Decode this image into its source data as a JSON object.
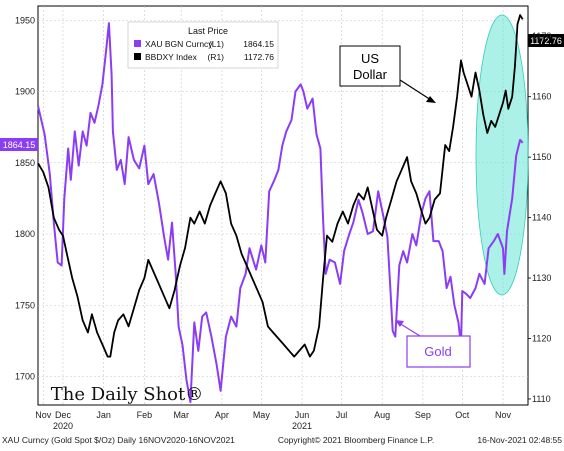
{
  "chart_data": {
    "type": "line",
    "title": "",
    "x_ticks": [
      {
        "label": "Nov",
        "x": "2020-11-16"
      },
      {
        "label": "Dec",
        "x": "2020-12-01"
      },
      {
        "label": "Jan",
        "x": "2021-01-01"
      },
      {
        "label": "Feb",
        "x": "2021-02-01"
      },
      {
        "label": "Mar",
        "x": "2021-03-01"
      },
      {
        "label": "Apr",
        "x": "2021-04-01"
      },
      {
        "label": "May",
        "x": "2021-05-01"
      },
      {
        "label": "Jun",
        "x": "2021-06-01"
      },
      {
        "label": "Jul",
        "x": "2021-07-01"
      },
      {
        "label": "Aug",
        "x": "2021-08-01"
      },
      {
        "label": "Sep",
        "x": "2021-09-01"
      },
      {
        "label": "Oct",
        "x": "2021-10-01"
      },
      {
        "label": "Nov",
        "x": "2021-11-01"
      }
    ],
    "year_labels": [
      {
        "label": "2020",
        "x": "2020-12-01"
      },
      {
        "label": "2021",
        "x": "2021-06-01"
      }
    ],
    "x_range": [
      "2020-11-12",
      "2021-11-20"
    ],
    "y_left": {
      "ylim": [
        1680,
        1960
      ],
      "ticks": [
        1700,
        1750,
        1800,
        1850,
        1900,
        1950
      ]
    },
    "y_right": {
      "ylim": [
        1109,
        1175
      ],
      "ticks": [
        1110,
        1120,
        1130,
        1140,
        1150,
        1160,
        1170
      ]
    },
    "legend": {
      "header": "Last Price",
      "placement": "top-left",
      "entries": [
        {
          "name": "XAU BGN Curncy",
          "axis": "(L1)",
          "value": "1864.15",
          "color": "#8b3df5"
        },
        {
          "name": "BBDXY Index",
          "axis": "(R1)",
          "value": "1172.76",
          "color": "#000000"
        }
      ]
    },
    "series": [
      {
        "name": "XAU BGN Curncy",
        "axis": "left",
        "color": "#8b3df5",
        "points": [
          [
            "2020-11-12",
            1890
          ],
          [
            "2020-11-17",
            1870
          ],
          [
            "2020-11-21",
            1842
          ],
          [
            "2020-11-24",
            1808
          ],
          [
            "2020-11-27",
            1780
          ],
          [
            "2020-11-30",
            1778
          ],
          [
            "2020-12-02",
            1825
          ],
          [
            "2020-12-05",
            1860
          ],
          [
            "2020-12-07",
            1838
          ],
          [
            "2020-12-10",
            1872
          ],
          [
            "2020-12-13",
            1848
          ],
          [
            "2020-12-16",
            1872
          ],
          [
            "2020-12-19",
            1862
          ],
          [
            "2020-12-22",
            1885
          ],
          [
            "2020-12-25",
            1878
          ],
          [
            "2020-12-28",
            1890
          ],
          [
            "2020-12-31",
            1905
          ],
          [
            "2021-01-03",
            1930
          ],
          [
            "2021-01-05",
            1948
          ],
          [
            "2021-01-07",
            1912
          ],
          [
            "2021-01-08",
            1872
          ],
          [
            "2021-01-11",
            1845
          ],
          [
            "2021-01-14",
            1852
          ],
          [
            "2021-01-17",
            1835
          ],
          [
            "2021-01-20",
            1868
          ],
          [
            "2021-01-24",
            1852
          ],
          [
            "2021-01-28",
            1846
          ],
          [
            "2021-02-01",
            1862
          ],
          [
            "2021-02-04",
            1835
          ],
          [
            "2021-02-08",
            1842
          ],
          [
            "2021-02-12",
            1822
          ],
          [
            "2021-02-16",
            1798
          ],
          [
            "2021-02-19",
            1782
          ],
          [
            "2021-02-22",
            1808
          ],
          [
            "2021-02-25",
            1770
          ],
          [
            "2021-02-27",
            1735
          ],
          [
            "2021-03-02",
            1722
          ],
          [
            "2021-03-05",
            1698
          ],
          [
            "2021-03-08",
            1682
          ],
          [
            "2021-03-11",
            1738
          ],
          [
            "2021-03-14",
            1718
          ],
          [
            "2021-03-17",
            1742
          ],
          [
            "2021-03-20",
            1745
          ],
          [
            "2021-03-24",
            1728
          ],
          [
            "2021-03-28",
            1708
          ],
          [
            "2021-03-31",
            1690
          ],
          [
            "2021-04-04",
            1728
          ],
          [
            "2021-04-08",
            1742
          ],
          [
            "2021-04-12",
            1735
          ],
          [
            "2021-04-15",
            1762
          ],
          [
            "2021-04-19",
            1772
          ],
          [
            "2021-04-22",
            1790
          ],
          [
            "2021-04-27",
            1775
          ],
          [
            "2021-05-01",
            1792
          ],
          [
            "2021-05-04",
            1780
          ],
          [
            "2021-05-07",
            1830
          ],
          [
            "2021-05-11",
            1838
          ],
          [
            "2021-05-14",
            1845
          ],
          [
            "2021-05-17",
            1862
          ],
          [
            "2021-05-20",
            1872
          ],
          [
            "2021-05-24",
            1880
          ],
          [
            "2021-05-27",
            1900
          ],
          [
            "2021-05-31",
            1905
          ],
          [
            "2021-06-02",
            1900
          ],
          [
            "2021-06-05",
            1888
          ],
          [
            "2021-06-09",
            1895
          ],
          [
            "2021-06-12",
            1870
          ],
          [
            "2021-06-15",
            1860
          ],
          [
            "2021-06-17",
            1810
          ],
          [
            "2021-06-19",
            1772
          ],
          [
            "2021-06-22",
            1782
          ],
          [
            "2021-06-26",
            1780
          ],
          [
            "2021-06-30",
            1765
          ],
          [
            "2021-07-03",
            1788
          ],
          [
            "2021-07-07",
            1800
          ],
          [
            "2021-07-10",
            1808
          ],
          [
            "2021-07-14",
            1824
          ],
          [
            "2021-07-17",
            1815
          ],
          [
            "2021-07-21",
            1800
          ],
          [
            "2021-07-25",
            1802
          ],
          [
            "2021-07-29",
            1830
          ],
          [
            "2021-08-02",
            1812
          ],
          [
            "2021-08-05",
            1798
          ],
          [
            "2021-08-07",
            1765
          ],
          [
            "2021-08-09",
            1732
          ],
          [
            "2021-08-11",
            1728
          ],
          [
            "2021-08-14",
            1778
          ],
          [
            "2021-08-17",
            1788
          ],
          [
            "2021-08-20",
            1780
          ],
          [
            "2021-08-24",
            1800
          ],
          [
            "2021-08-27",
            1792
          ],
          [
            "2021-08-31",
            1815
          ],
          [
            "2021-09-03",
            1825
          ],
          [
            "2021-09-06",
            1830
          ],
          [
            "2021-09-09",
            1795
          ],
          [
            "2021-09-13",
            1795
          ],
          [
            "2021-09-16",
            1788
          ],
          [
            "2021-09-19",
            1762
          ],
          [
            "2021-09-22",
            1770
          ],
          [
            "2021-09-25",
            1750
          ],
          [
            "2021-09-28",
            1738
          ],
          [
            "2021-09-30",
            1722
          ],
          [
            "2021-10-01",
            1760
          ],
          [
            "2021-10-04",
            1758
          ],
          [
            "2021-10-07",
            1755
          ],
          [
            "2021-10-11",
            1762
          ],
          [
            "2021-10-14",
            1772
          ],
          [
            "2021-10-18",
            1765
          ],
          [
            "2021-10-21",
            1790
          ],
          [
            "2021-10-25",
            1795
          ],
          [
            "2021-10-28",
            1800
          ],
          [
            "2021-11-01",
            1790
          ],
          [
            "2021-11-02",
            1772
          ],
          [
            "2021-11-04",
            1802
          ],
          [
            "2021-11-08",
            1825
          ],
          [
            "2021-11-11",
            1855
          ],
          [
            "2021-11-14",
            1866
          ],
          [
            "2021-11-16",
            1864
          ]
        ]
      },
      {
        "name": "BBDXY Index",
        "axis": "right",
        "color": "#000000",
        "points": [
          [
            "2020-11-12",
            1149
          ],
          [
            "2020-11-16",
            1147.5
          ],
          [
            "2020-11-20",
            1145
          ],
          [
            "2020-11-24",
            1140
          ],
          [
            "2020-11-28",
            1138
          ],
          [
            "2020-12-01",
            1137
          ],
          [
            "2020-12-04",
            1134
          ],
          [
            "2020-12-08",
            1130
          ],
          [
            "2020-12-12",
            1127
          ],
          [
            "2020-12-16",
            1123
          ],
          [
            "2020-12-20",
            1121
          ],
          [
            "2020-12-23",
            1124
          ],
          [
            "2020-12-27",
            1121
          ],
          [
            "2020-12-31",
            1119
          ],
          [
            "2021-01-04",
            1117
          ],
          [
            "2021-01-06",
            1117
          ],
          [
            "2021-01-09",
            1121
          ],
          [
            "2021-01-12",
            1123
          ],
          [
            "2021-01-16",
            1124
          ],
          [
            "2021-01-20",
            1122
          ],
          [
            "2021-01-24",
            1125
          ],
          [
            "2021-01-28",
            1128
          ],
          [
            "2021-02-01",
            1130
          ],
          [
            "2021-02-04",
            1133
          ],
          [
            "2021-02-08",
            1131
          ],
          [
            "2021-02-12",
            1129
          ],
          [
            "2021-02-16",
            1127
          ],
          [
            "2021-02-20",
            1125
          ],
          [
            "2021-02-24",
            1128
          ],
          [
            "2021-02-28",
            1132
          ],
          [
            "2021-03-04",
            1135
          ],
          [
            "2021-03-08",
            1140
          ],
          [
            "2021-03-11",
            1139
          ],
          [
            "2021-03-15",
            1141
          ],
          [
            "2021-03-19",
            1139
          ],
          [
            "2021-03-23",
            1142
          ],
          [
            "2021-03-27",
            1144
          ],
          [
            "2021-03-31",
            1146
          ],
          [
            "2021-04-04",
            1144
          ],
          [
            "2021-04-08",
            1139
          ],
          [
            "2021-04-12",
            1137
          ],
          [
            "2021-04-16",
            1134
          ],
          [
            "2021-04-20",
            1132
          ],
          [
            "2021-04-24",
            1130
          ],
          [
            "2021-04-28",
            1128
          ],
          [
            "2021-05-02",
            1126
          ],
          [
            "2021-05-06",
            1122
          ],
          [
            "2021-05-10",
            1121
          ],
          [
            "2021-05-14",
            1120
          ],
          [
            "2021-05-18",
            1119
          ],
          [
            "2021-05-22",
            1118
          ],
          [
            "2021-05-26",
            1117
          ],
          [
            "2021-05-30",
            1118
          ],
          [
            "2021-06-03",
            1119
          ],
          [
            "2021-06-07",
            1117
          ],
          [
            "2021-06-10",
            1118
          ],
          [
            "2021-06-14",
            1122
          ],
          [
            "2021-06-17",
            1130
          ],
          [
            "2021-06-20",
            1137
          ],
          [
            "2021-06-24",
            1136
          ],
          [
            "2021-06-28",
            1139
          ],
          [
            "2021-07-02",
            1141
          ],
          [
            "2021-07-06",
            1139
          ],
          [
            "2021-07-10",
            1142
          ],
          [
            "2021-07-14",
            1144
          ],
          [
            "2021-07-18",
            1143
          ],
          [
            "2021-07-21",
            1145
          ],
          [
            "2021-07-25",
            1141
          ],
          [
            "2021-07-28",
            1138
          ],
          [
            "2021-08-01",
            1137
          ],
          [
            "2021-08-04",
            1140
          ],
          [
            "2021-08-08",
            1143
          ],
          [
            "2021-08-12",
            1146
          ],
          [
            "2021-08-16",
            1148
          ],
          [
            "2021-08-20",
            1150
          ],
          [
            "2021-08-23",
            1146
          ],
          [
            "2021-08-27",
            1144
          ],
          [
            "2021-08-31",
            1141
          ],
          [
            "2021-09-03",
            1139
          ],
          [
            "2021-09-06",
            1140
          ],
          [
            "2021-09-10",
            1143
          ],
          [
            "2021-09-14",
            1144
          ],
          [
            "2021-09-18",
            1152
          ],
          [
            "2021-09-21",
            1151
          ],
          [
            "2021-09-24",
            1155
          ],
          [
            "2021-09-27",
            1160
          ],
          [
            "2021-09-30",
            1166
          ],
          [
            "2021-10-02",
            1164
          ],
          [
            "2021-10-05",
            1162
          ],
          [
            "2021-10-08",
            1160
          ],
          [
            "2021-10-11",
            1164
          ],
          [
            "2021-10-14",
            1161
          ],
          [
            "2021-10-17",
            1157
          ],
          [
            "2021-10-20",
            1154
          ],
          [
            "2021-10-23",
            1156
          ],
          [
            "2021-10-26",
            1155
          ],
          [
            "2021-10-29",
            1157
          ],
          [
            "2021-11-01",
            1159
          ],
          [
            "2021-11-03",
            1161
          ],
          [
            "2021-11-05",
            1158
          ],
          [
            "2021-11-08",
            1160
          ],
          [
            "2021-11-10",
            1165
          ],
          [
            "2021-11-12",
            1172
          ],
          [
            "2021-11-14",
            1173.5
          ],
          [
            "2021-11-16",
            1172.8
          ]
        ]
      }
    ],
    "annotations": [
      {
        "text_lines": [
          "US",
          "Dollar"
        ]
      },
      {
        "text_lines": [
          "Gold"
        ]
      }
    ],
    "axis_badges": {
      "left": "1864.15",
      "right": "1172.76"
    },
    "watermark": "The Daily Shot®",
    "footer": {
      "left": "XAU Curncy (Gold Spot  $/Oz)  Daily 16NOV2020-16NOV2021",
      "center": "Copyright© 2021 Bloomberg Finance L.P.",
      "right": "16-Nov-2021 02:48:55"
    }
  }
}
